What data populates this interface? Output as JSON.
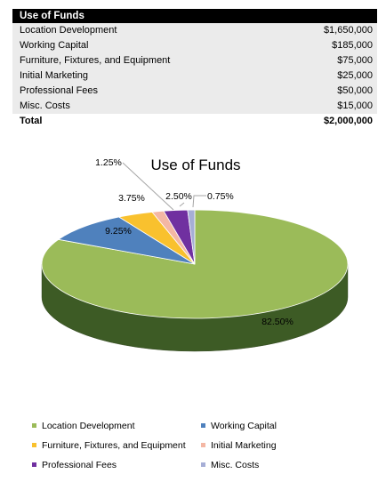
{
  "table": {
    "header": "Use of Funds",
    "rows": [
      {
        "label": "Location Development",
        "amount": "$1,650,000"
      },
      {
        "label": "Working Capital",
        "amount": "$185,000"
      },
      {
        "label": "Furniture, Fixtures, and Equipment",
        "amount": "$75,000"
      },
      {
        "label": "Initial Marketing",
        "amount": "$25,000"
      },
      {
        "label": "Professional Fees",
        "amount": "$50,000"
      },
      {
        "label": "Misc. Costs",
        "amount": "$15,000"
      }
    ],
    "total": {
      "label": "Total",
      "amount": "$2,000,000"
    }
  },
  "chart_data": {
    "type": "pie",
    "variant": "3d",
    "title": "Use of Funds",
    "legend_position": "bottom",
    "categories": [
      "Location Development",
      "Working Capital",
      "Furniture, Fixtures, and Equipment",
      "Initial Marketing",
      "Professional Fees",
      "Misc. Costs"
    ],
    "values": [
      82.5,
      9.25,
      3.75,
      1.25,
      2.5,
      0.75
    ],
    "data_labels": [
      "82.50%",
      "9.25%",
      "3.75%",
      "1.25%",
      "2.50%",
      "0.75%"
    ],
    "colors": [
      "#9bbb59",
      "#4f81bd",
      "#f9c12e",
      "#f4b7a4",
      "#7030a0",
      "#a6aed6"
    ],
    "side_colors": [
      "#3d5b25",
      "#273f66",
      "#8c6a10",
      "#a06c5c",
      "#3a1858",
      "#606a90"
    ]
  }
}
